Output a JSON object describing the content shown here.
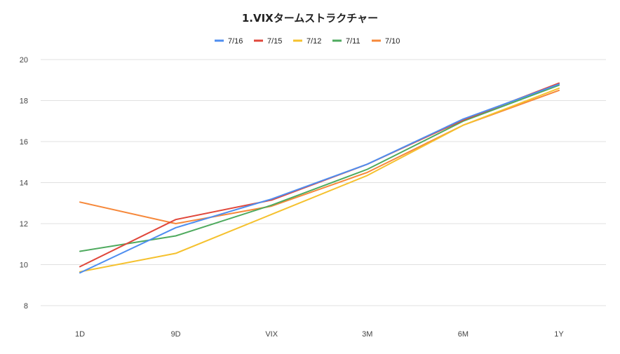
{
  "chart_data": {
    "type": "line",
    "title": "1.VIXタームストラクチャー",
    "xlabel": "",
    "ylabel": "",
    "categories": [
      "1D",
      "9D",
      "VIX",
      "3M",
      "6M",
      "1Y"
    ],
    "ylim": [
      8,
      20
    ],
    "yticks": [
      8,
      10,
      12,
      14,
      16,
      18,
      20
    ],
    "grid": true,
    "legend_position": "top",
    "series": [
      {
        "name": "7/16",
        "color": "#4e8ef0",
        "values": [
          9.6,
          11.8,
          13.2,
          14.9,
          17.1,
          18.8
        ]
      },
      {
        "name": "7/15",
        "color": "#e0473b",
        "values": [
          9.9,
          12.2,
          13.15,
          14.9,
          17.05,
          18.85
        ]
      },
      {
        "name": "7/12",
        "color": "#f5c12e",
        "values": [
          9.65,
          10.55,
          12.45,
          14.35,
          16.8,
          18.6
        ]
      },
      {
        "name": "7/11",
        "color": "#4eaa5e",
        "values": [
          10.65,
          11.4,
          12.9,
          14.65,
          17.0,
          18.75
        ]
      },
      {
        "name": "7/10",
        "color": "#f6883a",
        "values": [
          13.05,
          12.0,
          12.85,
          14.5,
          16.8,
          18.5
        ]
      }
    ]
  }
}
